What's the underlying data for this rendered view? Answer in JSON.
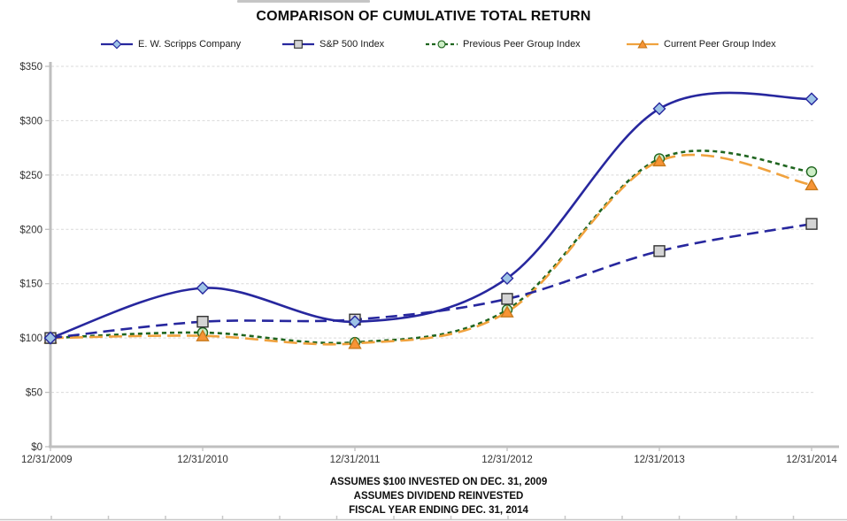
{
  "page": {
    "footnotes": [
      "ASSUMES $100 INVESTED ON DEC. 31, 2009",
      "ASSUMES DIVIDEND REINVESTED",
      "FISCAL YEAR ENDING DEC. 31, 2014"
    ]
  },
  "chart_data": {
    "type": "line",
    "title": "COMPARISON OF CUMULATIVE TOTAL RETURN",
    "categories": [
      "12/31/2009",
      "12/31/2010",
      "12/31/2011",
      "12/31/2012",
      "12/31/2013",
      "12/31/2014"
    ],
    "series": [
      {
        "name": "E. W. Scripps Company",
        "values": [
          100,
          146,
          115,
          155,
          311,
          320
        ],
        "color": "#27279E",
        "dash": "",
        "legend_dash": "",
        "marker": "diamond",
        "marker_fill": "#9DC3E6",
        "marker_stroke": "#27279E"
      },
      {
        "name": "S&P 500 Index",
        "values": [
          100,
          115,
          117,
          136,
          180,
          205
        ],
        "color": "#27279E",
        "dash": "13 7",
        "legend_dash": "",
        "marker": "square",
        "marker_fill": "#D4D4D4",
        "marker_stroke": "#333333"
      },
      {
        "name": "Previous Peer Group Index",
        "values": [
          100,
          105,
          96,
          126,
          265,
          253
        ],
        "color": "#1F651F",
        "dash": "5 4",
        "legend_dash": "4 3",
        "marker": "circle",
        "marker_fill": "#CDEEC6",
        "marker_stroke": "#1F651F"
      },
      {
        "name": "Current Peer Group Index",
        "values": [
          100,
          102,
          95,
          124,
          263,
          241
        ],
        "color": "#F0A23E",
        "dash": "15 7",
        "legend_dash": "",
        "marker": "triangle",
        "marker_fill": "#F79435",
        "marker_stroke": "#C87A1C"
      }
    ],
    "ylim": [
      0,
      350
    ],
    "y_tick_step": 50,
    "y_tick_labels": [
      "$0",
      "$50",
      "$100",
      "$150",
      "$200",
      "$250",
      "$300",
      "$350"
    ],
    "grid": true,
    "legend_position": "top",
    "line_smoothing": true
  },
  "colors": {
    "gridline": "#D9D9D9",
    "axis": "#BFBFBF",
    "tick_text": "#333333",
    "ruler": "#C8C8C8"
  }
}
